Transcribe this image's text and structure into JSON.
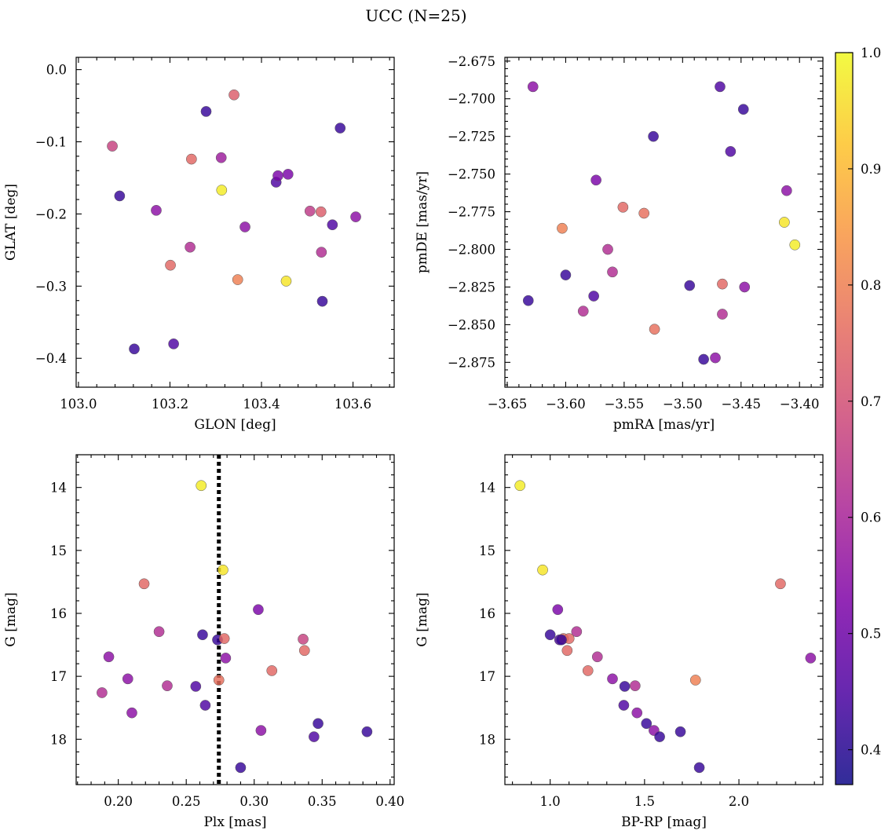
{
  "figure": {
    "title": "UCC (N=25)"
  },
  "colorbar": {
    "min": 0.37,
    "max": 1.0,
    "ticks": [
      "0.4",
      "0.5",
      "0.6",
      "0.7",
      "0.8",
      "0.9",
      "1.0"
    ],
    "colormap": "plasma"
  },
  "chart_data": [
    {
      "type": "scatter",
      "xlabel": "GLON [deg]",
      "ylabel": "GLAT [deg]",
      "xlim": [
        102.995,
        103.69
      ],
      "ylim": [
        -0.44,
        0.017
      ],
      "xticks": [
        "103.0",
        "103.2",
        "103.4",
        "103.6"
      ],
      "yticks": [
        "0.0",
        "−0.1",
        "−0.2",
        "−0.3",
        "−0.4"
      ],
      "x": [
        103.074,
        103.09,
        103.122,
        103.17,
        103.201,
        103.208,
        103.244,
        103.247,
        103.279,
        103.312,
        103.313,
        103.34,
        103.348,
        103.364,
        103.432,
        103.436,
        103.454,
        103.458,
        103.506,
        103.53,
        103.531,
        103.533,
        103.555,
        103.572,
        103.606
      ],
      "y": [
        -0.106,
        -0.175,
        -0.387,
        -0.195,
        -0.271,
        -0.38,
        -0.246,
        -0.124,
        -0.058,
        -0.122,
        -0.167,
        -0.035,
        -0.291,
        -0.218,
        -0.156,
        -0.147,
        -0.293,
        -0.145,
        -0.196,
        -0.197,
        -0.253,
        -0.321,
        -0.215,
        -0.081,
        -0.204
      ],
      "c": [
        0.67,
        0.42,
        0.42,
        0.55,
        0.75,
        0.45,
        0.62,
        0.75,
        0.42,
        0.58,
        0.98,
        0.73,
        0.8,
        0.55,
        0.45,
        0.52,
        0.97,
        0.52,
        0.65,
        0.73,
        0.62,
        0.42,
        0.45,
        0.42,
        0.55
      ]
    },
    {
      "type": "scatter",
      "xlabel": "pmRA [mas/yr]",
      "ylabel": "pmDE [mas/yr]",
      "xlim": [
        -3.652,
        -3.38
      ],
      "ylim": [
        -2.8915,
        -2.6725
      ],
      "xticks": [
        "−3.65",
        "−3.60",
        "−3.55",
        "−3.50",
        "−3.45",
        "−3.40"
      ],
      "yticks": [
        "−2.675",
        "−2.700",
        "−2.725",
        "−2.750",
        "−2.775",
        "−2.800",
        "−2.825",
        "−2.850",
        "−2.875"
      ],
      "x": [
        -3.628,
        -3.632,
        -3.603,
        -3.6,
        -3.585,
        -3.576,
        -3.574,
        -3.564,
        -3.56,
        -3.551,
        -3.533,
        -3.524,
        -3.525,
        -3.494,
        -3.482,
        -3.472,
        -3.468,
        -3.466,
        -3.466,
        -3.459,
        -3.448,
        -3.447,
        -3.413,
        -3.411,
        -3.404
      ],
      "y": [
        -2.692,
        -2.834,
        -2.786,
        -2.817,
        -2.841,
        -2.831,
        -2.754,
        -2.8,
        -2.815,
        -2.772,
        -2.776,
        -2.853,
        -2.725,
        -2.824,
        -2.873,
        -2.872,
        -2.692,
        -2.823,
        -2.843,
        -2.735,
        -2.707,
        -2.825,
        -2.782,
        -2.761,
        -2.797
      ],
      "c": [
        0.55,
        0.42,
        0.8,
        0.42,
        0.62,
        0.45,
        0.52,
        0.62,
        0.62,
        0.75,
        0.77,
        0.77,
        0.42,
        0.42,
        0.42,
        0.55,
        0.45,
        0.75,
        0.62,
        0.45,
        0.42,
        0.55,
        0.97,
        0.55,
        0.98
      ]
    },
    {
      "type": "scatter",
      "xlabel": "Plx [mas]",
      "ylabel": "G [mag]",
      "xlim": [
        0.169,
        0.403
      ],
      "ylim": [
        18.72,
        13.48
      ],
      "invert_y": true,
      "xticks": [
        "0.20",
        "0.25",
        "0.30",
        "0.35",
        "0.40"
      ],
      "yticks": [
        "14",
        "15",
        "16",
        "17",
        "18"
      ],
      "vline": 0.274,
      "x": [
        0.188,
        0.193,
        0.207,
        0.21,
        0.219,
        0.23,
        0.236,
        0.257,
        0.261,
        0.262,
        0.264,
        0.273,
        0.274,
        0.277,
        0.278,
        0.279,
        0.29,
        0.303,
        0.305,
        0.313,
        0.336,
        0.337,
        0.344,
        0.347,
        0.383
      ],
      "y": [
        17.26,
        16.69,
        17.04,
        17.58,
        15.53,
        16.29,
        17.15,
        17.16,
        13.97,
        16.34,
        17.46,
        16.42,
        17.06,
        15.31,
        16.4,
        16.71,
        18.45,
        15.94,
        17.86,
        16.91,
        16.41,
        16.59,
        17.96,
        17.75,
        17.88
      ],
      "c": [
        0.62,
        0.55,
        0.55,
        0.55,
        0.75,
        0.62,
        0.62,
        0.45,
        0.98,
        0.42,
        0.45,
        0.42,
        0.77,
        0.97,
        0.75,
        0.55,
        0.42,
        0.52,
        0.55,
        0.75,
        0.67,
        0.75,
        0.45,
        0.42,
        0.42
      ]
    },
    {
      "type": "scatter",
      "xlabel": "BP-RP [mag]",
      "ylabel": "G [mag]",
      "xlim": [
        0.76,
        2.445
      ],
      "ylim": [
        18.72,
        13.48
      ],
      "invert_y": true,
      "xticks": [
        "1.0",
        "1.5",
        "2.0"
      ],
      "yticks": [
        "14",
        "15",
        "16",
        "17",
        "18"
      ],
      "x": [
        0.84,
        0.96,
        1.0,
        1.04,
        1.05,
        1.07,
        1.09,
        1.14,
        1.2,
        1.25,
        1.33,
        1.39,
        1.395,
        1.45,
        1.46,
        1.51,
        1.55,
        1.58,
        1.69,
        1.79,
        1.77,
        1.1,
        2.22,
        2.38,
        1.06
      ],
      "y": [
        13.97,
        15.31,
        16.34,
        15.94,
        16.42,
        16.4,
        16.59,
        16.29,
        16.91,
        16.69,
        17.04,
        17.46,
        17.16,
        17.15,
        17.58,
        17.75,
        17.86,
        17.96,
        17.88,
        18.45,
        17.06,
        16.4,
        15.53,
        16.71,
        16.42
      ],
      "c": [
        0.98,
        0.97,
        0.42,
        0.52,
        0.45,
        0.77,
        0.75,
        0.62,
        0.75,
        0.62,
        0.55,
        0.45,
        0.42,
        0.62,
        0.55,
        0.42,
        0.55,
        0.42,
        0.42,
        0.42,
        0.8,
        0.75,
        0.75,
        0.55,
        0.42
      ]
    }
  ]
}
